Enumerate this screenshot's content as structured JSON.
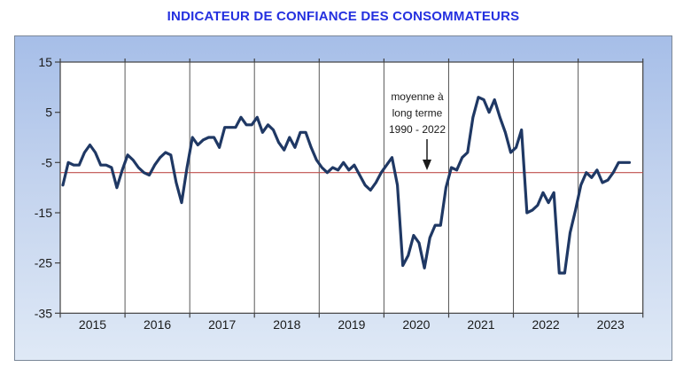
{
  "chart_data": {
    "type": "line",
    "title": "INDICATEUR DE CONFIANCE DES CONSOMMATEURS",
    "title_color": "#2430DF",
    "frequency": "monthly",
    "x_start": "2015-01",
    "x_end": "2023-10",
    "year_labels": [
      "2015",
      "2016",
      "2017",
      "2018",
      "2019",
      "2020",
      "2021",
      "2022",
      "2023"
    ],
    "y_ticks": [
      15,
      5,
      -5,
      -15,
      -25,
      -35
    ],
    "ylim": [
      -35,
      15
    ],
    "grid": "vertical-year-lines",
    "axis_color": "#404040",
    "gridline_color": "#595959",
    "series": [
      {
        "name": "Indicateur de confiance des consommateurs",
        "color": "#1F3864",
        "values": [
          -9.5,
          -5,
          -5.5,
          -5.5,
          -3,
          -1.5,
          -3,
          -5.5,
          -5.5,
          -6,
          -10,
          -6.5,
          -3.5,
          -4.5,
          -6,
          -7,
          -7.5,
          -5.5,
          -4,
          -3,
          -3.5,
          -9,
          -13,
          -6,
          0,
          -1.5,
          -0.5,
          0,
          0,
          -2,
          2,
          2,
          2,
          4,
          2.5,
          2.5,
          4,
          1,
          2.5,
          1.5,
          -1,
          -2.5,
          0,
          -2,
          1,
          1,
          -2,
          -4.5,
          -6,
          -7,
          -6,
          -6.5,
          -5,
          -6.5,
          -5.5,
          -7.5,
          -9.5,
          -10.5,
          -9,
          -7,
          -5.5,
          -4,
          -9.5,
          -25.5,
          -23.5,
          -19.5,
          -21,
          -26,
          -20,
          -17.5,
          -17.5,
          -10,
          -6,
          -6.5,
          -4,
          -3,
          4,
          8,
          7.5,
          5,
          7.5,
          4,
          1,
          -3,
          -2,
          1.5,
          -15,
          -14.5,
          -13.5,
          -11,
          -13,
          -11,
          -27,
          -27,
          -19,
          -14.5,
          -9.5,
          -7,
          -8,
          -6.5,
          -9,
          -8.5,
          -7,
          -5,
          -5,
          -5
        ]
      }
    ],
    "reference_line": {
      "value": -7,
      "color": "#C0504D",
      "annotation_lines": [
        "moyenne à",
        "long terme",
        "1990 - 2022"
      ]
    }
  }
}
